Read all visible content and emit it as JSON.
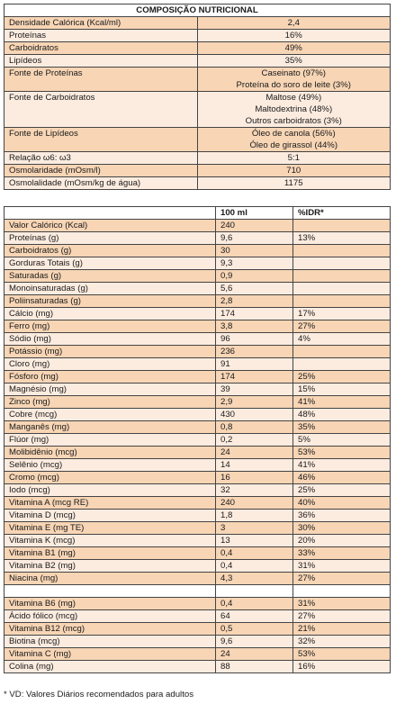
{
  "composition": {
    "title": "COMPOSIÇÃO NUTRICIONAL",
    "rows": [
      {
        "label": "Densidade Calórica (Kcal/ml)",
        "values": [
          "2,4"
        ]
      },
      {
        "label": "Proteínas",
        "values": [
          "16%"
        ]
      },
      {
        "label": "Carboidratos",
        "values": [
          "49%"
        ]
      },
      {
        "label": "Lipídeos",
        "values": [
          "35%"
        ]
      },
      {
        "label": "Fonte de Proteínas",
        "values": [
          "Caseinato (97%)",
          "Proteína do soro de leite (3%)"
        ]
      },
      {
        "label": "Fonte de Carboidratos",
        "values": [
          "Maltose (49%)",
          "Maltodextrina (48%)",
          "Outros carboidratos (3%)"
        ]
      },
      {
        "label": "Fonte de Lipídeos",
        "values": [
          "Óleo de canola (56%)",
          "Óleo de girassol (44%)"
        ]
      },
      {
        "label": "Relação ω6: ω3",
        "values": [
          "5:1"
        ]
      },
      {
        "label": "Osmolaridade (mOsm/l)",
        "values": [
          "710"
        ]
      },
      {
        "label": "Osmolalidade (mOsm/kg de água)",
        "values": [
          "1175"
        ]
      }
    ]
  },
  "nutrients": {
    "headers": [
      "",
      "100 ml",
      "%IDR*"
    ],
    "rows": [
      [
        "Valor Calórico (Kcal)",
        "240",
        ""
      ],
      [
        "Proteínas (g)",
        "9,6",
        "13%"
      ],
      [
        "Carboidratos (g)",
        "30",
        ""
      ],
      [
        "Gorduras Totais (g)",
        "9,3",
        ""
      ],
      [
        "Saturadas (g)",
        "0,9",
        ""
      ],
      [
        "Monoinsaturadas (g)",
        "5,6",
        ""
      ],
      [
        "Poliinsaturadas (g)",
        "2,8",
        ""
      ],
      [
        "Cálcio (mg)",
        "174",
        "17%"
      ],
      [
        "Ferro (mg)",
        "3,8",
        "27%"
      ],
      [
        "Sódio (mg)",
        "96",
        "4%"
      ],
      [
        "Potássio (mg)",
        "236",
        ""
      ],
      [
        "Cloro (mg)",
        "91",
        ""
      ],
      [
        "Fósforo (mg)",
        "174",
        "25%"
      ],
      [
        "Magnésio (mg)",
        "39",
        "15%"
      ],
      [
        "Zinco (mg)",
        "2,9",
        "41%"
      ],
      [
        "Cobre (mcg)",
        "430",
        "48%"
      ],
      [
        "Manganês (mg)",
        "0,8",
        "35%"
      ],
      [
        "Flúor (mg)",
        "0,2",
        "5%"
      ],
      [
        "Molibidênio (mcg)",
        "24",
        "53%"
      ],
      [
        "Selênio (mcg)",
        "14",
        "41%"
      ],
      [
        "Cromo (mcg)",
        "16",
        "46%"
      ],
      [
        "Iodo (mcg)",
        "32",
        "25%"
      ],
      [
        "Vitamina A (mcg RE)",
        "240",
        "40%"
      ],
      [
        "Vitamina D (mcg)",
        "1,8",
        "36%"
      ],
      [
        "Vitamina E (mg TE)",
        "3",
        "30%"
      ],
      [
        "Vitamina K (mcg)",
        "13",
        "20%"
      ],
      [
        "Vitamina B1 (mg)",
        "0,4",
        "33%"
      ],
      [
        "Vitamina B2 (mg)",
        "0,4",
        "31%"
      ],
      [
        "Niacina (mg)",
        "4,3",
        "27%"
      ],
      [
        "",
        "",
        ""
      ],
      [
        "Vitamina B6 (mg)",
        "0,4",
        "31%"
      ],
      [
        "Ácido fólico (mcg)",
        "64",
        "27%"
      ],
      [
        "Vitamina B12 (mcg)",
        "0,5",
        "21%"
      ],
      [
        "Biotina (mcg)",
        "9,6",
        "32%"
      ],
      [
        "Vitamina C (mg)",
        "24",
        "53%"
      ],
      [
        "Colina (mg)",
        "88",
        "16%"
      ]
    ]
  },
  "footnote": "* VD: Valores Diários recomendados para adultos"
}
